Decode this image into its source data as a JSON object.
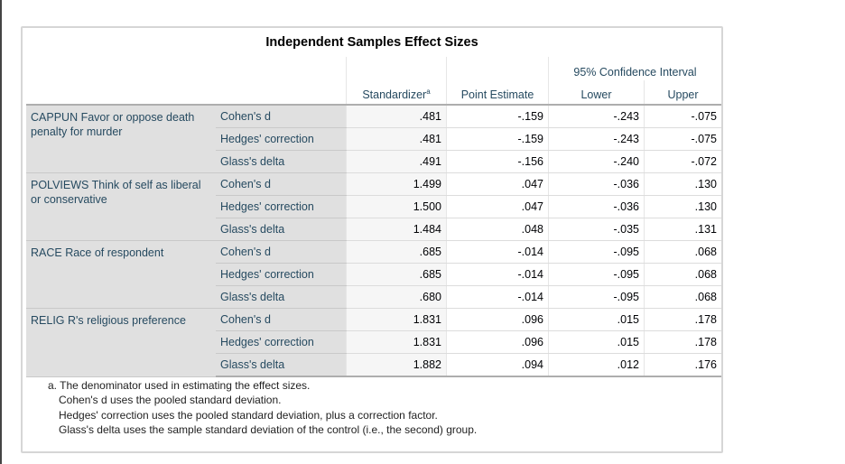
{
  "title": "Independent Samples Effect Sizes",
  "headers": {
    "standardizer": "Standardizer",
    "standardizer_sup": "a",
    "point_estimate": "Point Estimate",
    "ci": "95% Confidence Interval",
    "lower": "Lower",
    "upper": "Upper"
  },
  "groups": [
    {
      "label": "CAPPUN Favor or oppose death penalty for murder",
      "rows": [
        {
          "stat": "Cohen's d",
          "std": ".481",
          "pe": "-.159",
          "lo": "-.243",
          "up": "-.075"
        },
        {
          "stat": "Hedges' correction",
          "std": ".481",
          "pe": "-.159",
          "lo": "-.243",
          "up": "-.075"
        },
        {
          "stat": "Glass's delta",
          "std": ".491",
          "pe": "-.156",
          "lo": "-.240",
          "up": "-.072"
        }
      ]
    },
    {
      "label": "POLVIEWS Think of self as liberal or conservative",
      "rows": [
        {
          "stat": "Cohen's d",
          "std": "1.499",
          "pe": ".047",
          "lo": "-.036",
          "up": ".130"
        },
        {
          "stat": "Hedges' correction",
          "std": "1.500",
          "pe": ".047",
          "lo": "-.036",
          "up": ".130"
        },
        {
          "stat": "Glass's delta",
          "std": "1.484",
          "pe": ".048",
          "lo": "-.035",
          "up": ".131"
        }
      ]
    },
    {
      "label": "RACE Race of respondent",
      "rows": [
        {
          "stat": "Cohen's d",
          "std": ".685",
          "pe": "-.014",
          "lo": "-.095",
          "up": ".068"
        },
        {
          "stat": "Hedges' correction",
          "std": ".685",
          "pe": "-.014",
          "lo": "-.095",
          "up": ".068"
        },
        {
          "stat": "Glass's delta",
          "std": ".680",
          "pe": "-.014",
          "lo": "-.095",
          "up": ".068"
        }
      ]
    },
    {
      "label": "RELIG R's religious preference",
      "rows": [
        {
          "stat": "Cohen's d",
          "std": "1.831",
          "pe": ".096",
          "lo": ".015",
          "up": ".178"
        },
        {
          "stat": "Hedges' correction",
          "std": "1.831",
          "pe": ".096",
          "lo": ".015",
          "up": ".178"
        },
        {
          "stat": "Glass's delta",
          "std": "1.882",
          "pe": ".094",
          "lo": ".012",
          "up": ".176"
        }
      ]
    }
  ],
  "footnotes": [
    "a. The denominator used in estimating the effect sizes.",
    "Cohen's d uses the pooled standard deviation.",
    "Hedges' correction uses the pooled standard deviation, plus a correction factor.",
    "Glass's delta uses the sample standard deviation of the control (i.e., the second) group."
  ]
}
